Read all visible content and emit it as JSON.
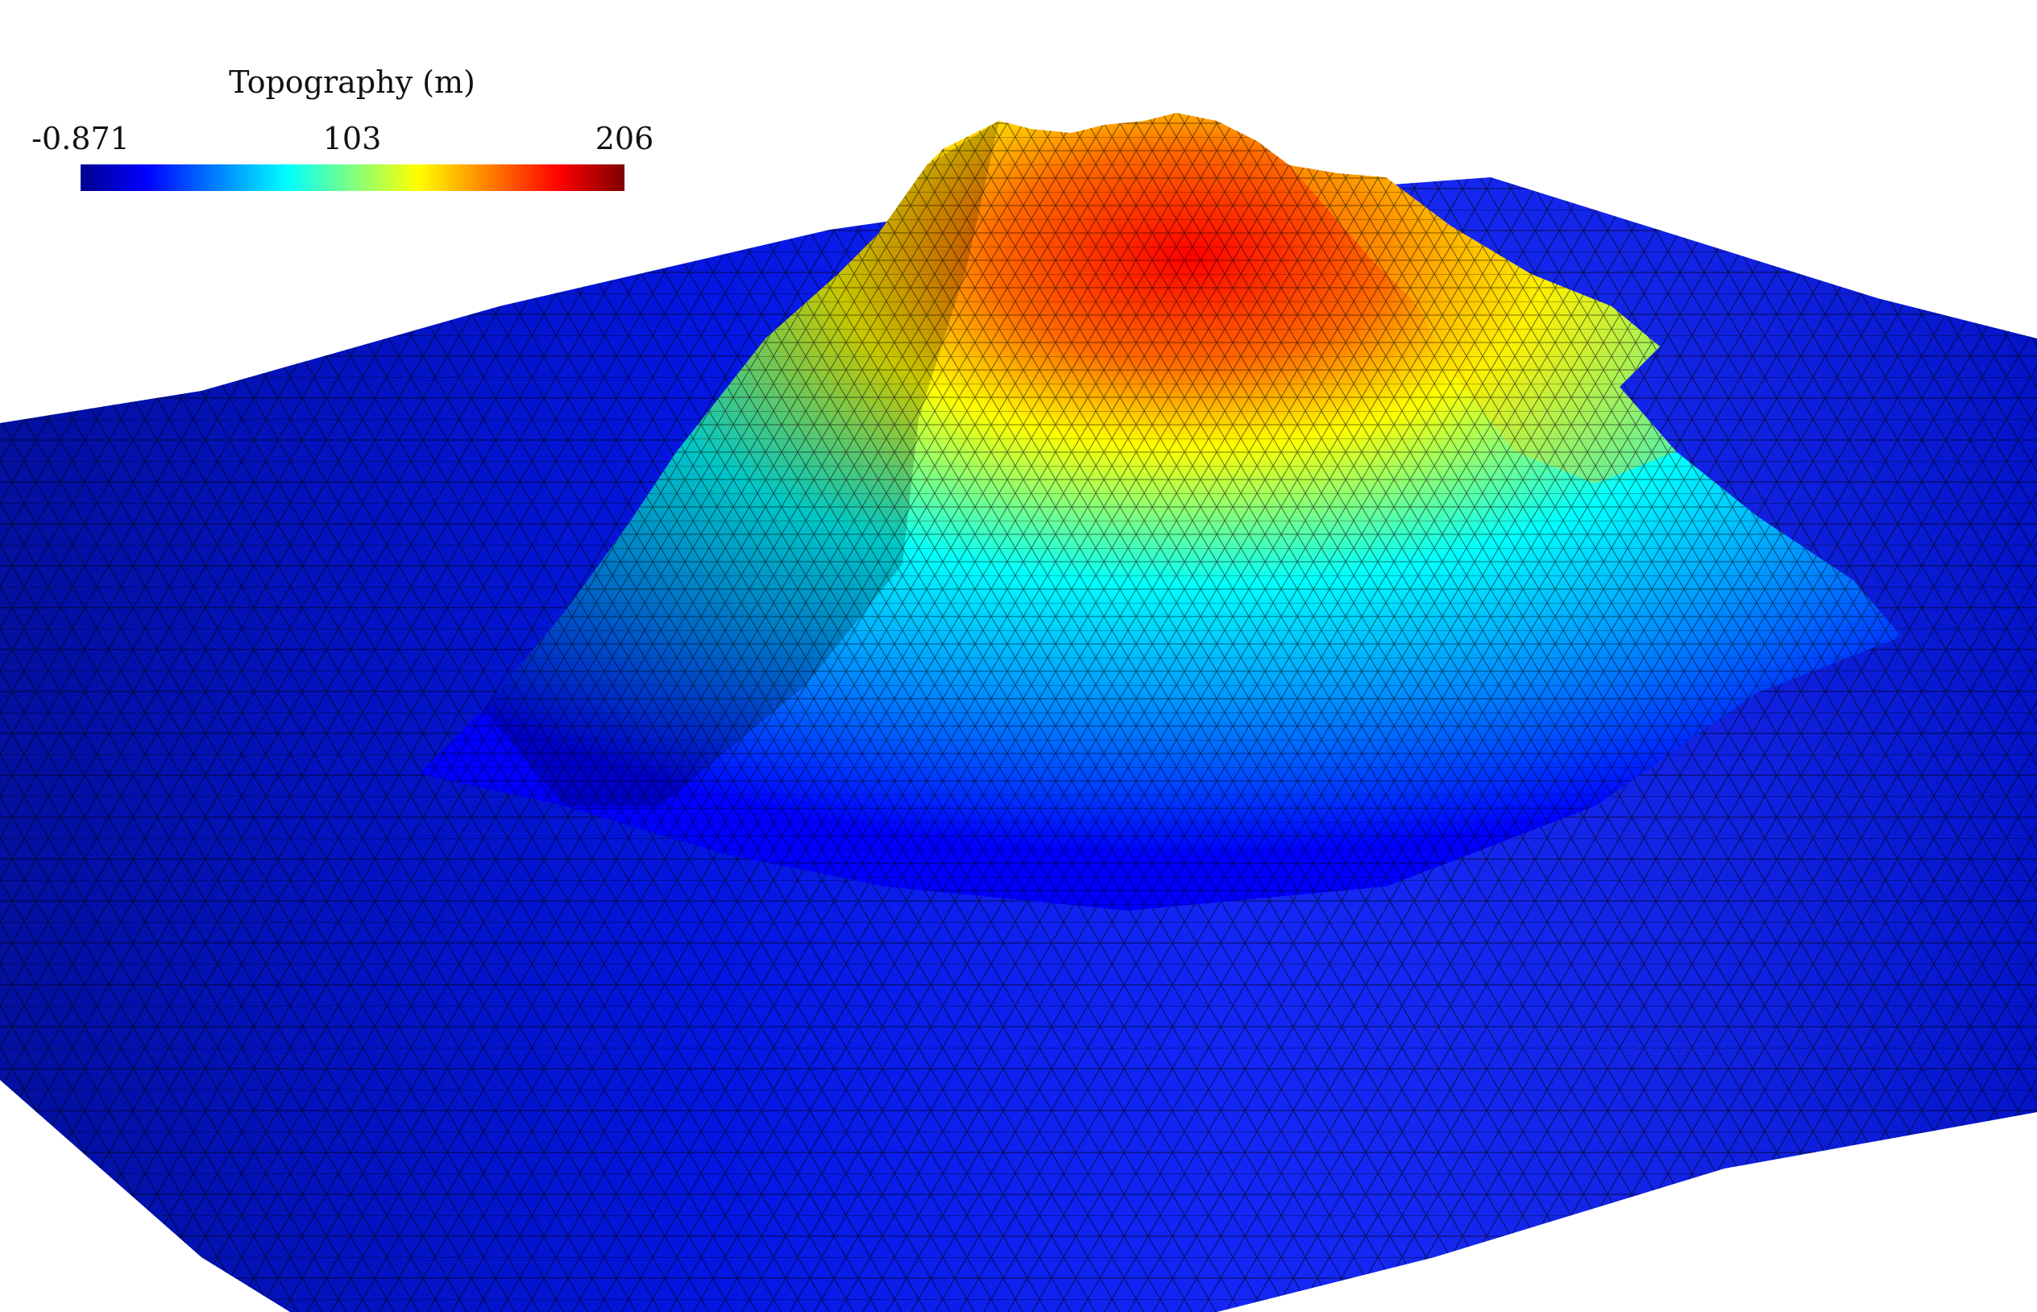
{
  "colorbar": {
    "title": "Topography (m)",
    "min_label": "-0.871",
    "mid_label": "103",
    "max_label": "206",
    "min_value": -0.871,
    "max_value": 206,
    "colormap": [
      "#00008f",
      "#0000ff",
      "#00ffff",
      "#ffff00",
      "#ff0000",
      "#800000"
    ]
  },
  "surface": {
    "description_colors": {
      "lowland": "#0000ff",
      "slope": "#00ffff",
      "upper": "#ffff00",
      "summit": "#ff0000"
    },
    "mesh_line_color": "#000000"
  }
}
